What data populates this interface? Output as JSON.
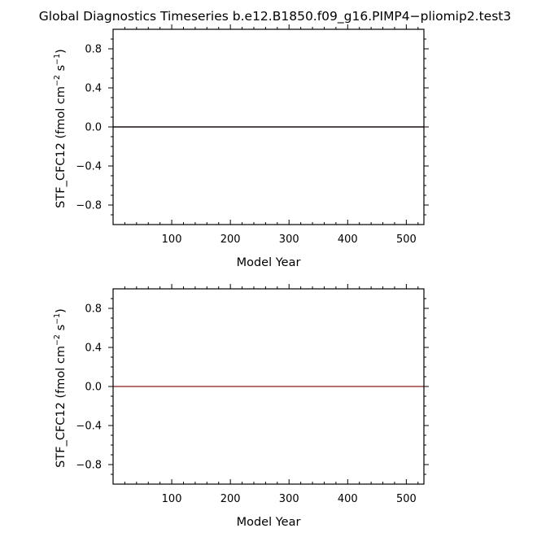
{
  "title": "Global Diagnostics Timeseries b.e12.B1850.f09_g16.PIMP4−pliomip2.test3",
  "chart_data": [
    {
      "type": "line",
      "xlabel": "Model Year",
      "ylabel": {
        "base": "STF_CFC12 (fmol cm",
        "sup1": "−2",
        "mid": " s",
        "sup2": "−1",
        "end": ")"
      },
      "xlim": [
        0,
        530
      ],
      "ylim": [
        -1.0,
        1.0
      ],
      "x_ticks": [
        100,
        200,
        300,
        400,
        500
      ],
      "x_tick_labels": [
        "100",
        "200",
        "300",
        "400",
        "500"
      ],
      "y_ticks": [
        0.8,
        0.4,
        0.0,
        -0.4,
        -0.8
      ],
      "y_tick_labels": [
        "0.8",
        "0.4",
        "0.0",
        "−0.4",
        "−0.8"
      ],
      "x_minor_step": 20,
      "y_minor_step": 0.1,
      "grid": false,
      "series": [
        {
          "color": "#8b1a1a",
          "x": [
            0,
            530
          ],
          "y": [
            0.0,
            0.0
          ]
        },
        {
          "color": "#000000",
          "x": [
            0,
            530
          ],
          "y": [
            0.0,
            0.0
          ]
        }
      ]
    },
    {
      "type": "line",
      "xlabel": "Model Year",
      "ylabel": {
        "base": "STF_CFC12 (fmol cm",
        "sup1": "−2",
        "mid": " s",
        "sup2": "−1",
        "end": ")"
      },
      "xlim": [
        0,
        530
      ],
      "ylim": [
        -1.0,
        1.0
      ],
      "x_ticks": [
        100,
        200,
        300,
        400,
        500
      ],
      "x_tick_labels": [
        "100",
        "200",
        "300",
        "400",
        "500"
      ],
      "y_ticks": [
        0.8,
        0.4,
        0.0,
        -0.4,
        -0.8
      ],
      "y_tick_labels": [
        "0.8",
        "0.4",
        "0.0",
        "−0.4",
        "−0.8"
      ],
      "x_minor_step": 20,
      "y_minor_step": 0.1,
      "grid": false,
      "series": [
        {
          "color": "#8b1a1a",
          "x": [
            0,
            530
          ],
          "y": [
            0.0,
            0.0
          ]
        }
      ]
    }
  ]
}
